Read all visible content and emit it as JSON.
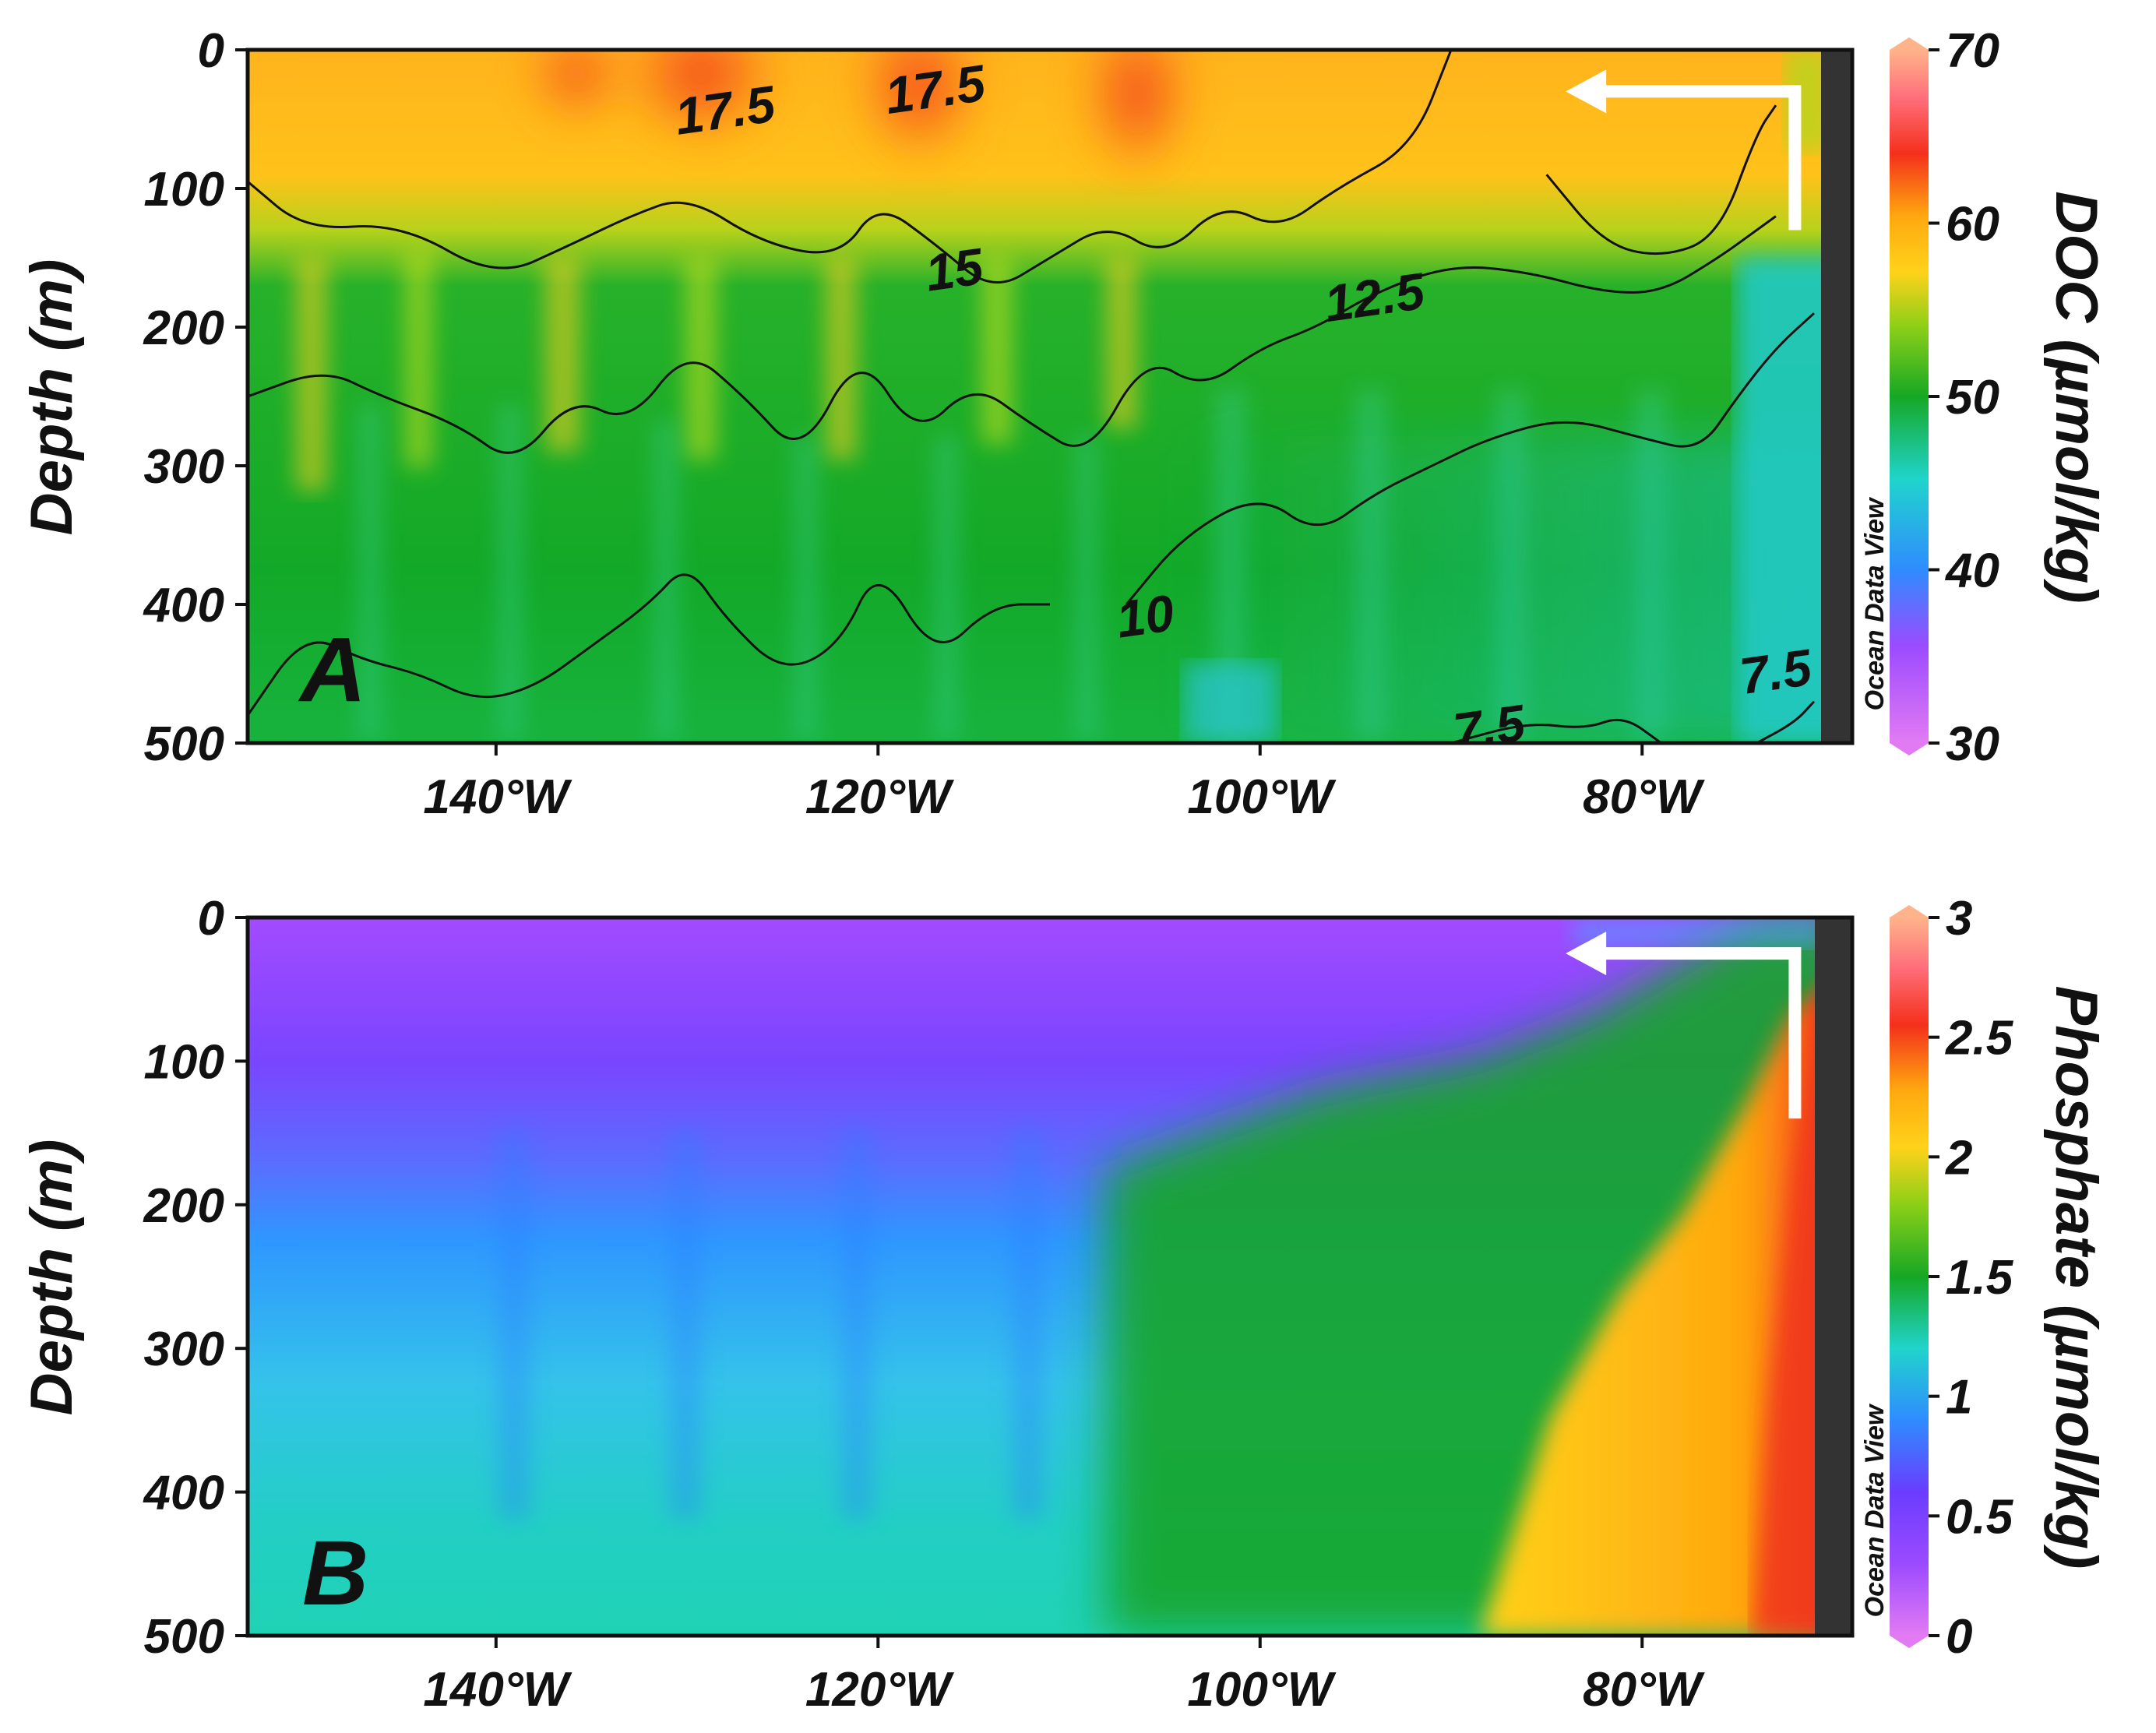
{
  "figure": {
    "source_tag": "Ocean Data View"
  },
  "chart_data": [
    {
      "type": "heatmap",
      "panel_label": "A",
      "variable": "DOC",
      "colorbar_label": "DOC (µmol/kg)",
      "ylabel": "Depth (m)",
      "ylim": [
        0,
        500
      ],
      "y_ticks": [
        "0",
        "100",
        "200",
        "300",
        "400",
        "500"
      ],
      "xlim_lon_w": [
        153,
        69
      ],
      "x_ticks": [
        {
          "lon_w": 140,
          "label": "140°W"
        },
        {
          "lon_w": 120,
          "label": "120°W"
        },
        {
          "lon_w": 100,
          "label": "100°W"
        },
        {
          "lon_w": 80,
          "label": "80°W"
        }
      ],
      "color_range": [
        30,
        70
      ],
      "colorbar_ticks": [
        "30",
        "40",
        "50",
        "60",
        "70"
      ],
      "contour_variable_levels": [
        "7.5",
        "10",
        "12.5",
        "15",
        "17.5"
      ],
      "contour_labels": [
        {
          "text": "17.5",
          "lon_w": 128,
          "depth": 45
        },
        {
          "text": "17.5",
          "lon_w": 117,
          "depth": 30
        },
        {
          "text": "15",
          "lon_w": 116,
          "depth": 160
        },
        {
          "text": "12.5",
          "lon_w": 94,
          "depth": 180
        },
        {
          "text": "10",
          "lon_w": 106,
          "depth": 410
        },
        {
          "text": "7.5",
          "lon_w": 88,
          "depth": 490
        },
        {
          "text": "7.5",
          "lon_w": 73,
          "depth": 450
        }
      ],
      "contours": [
        {
          "level": "15",
          "points": [
            [
              153,
              95
            ],
            [
              150,
              130
            ],
            [
              145,
              125
            ],
            [
              140,
              165
            ],
            [
              136,
              140
            ],
            [
              133,
              120
            ],
            [
              130,
              105
            ],
            [
              126,
              140
            ],
            [
              122,
              150
            ],
            [
              120,
              110
            ],
            [
              117,
              140
            ],
            [
              114,
              175
            ],
            [
              111,
              150
            ],
            [
              108,
              125
            ],
            [
              105,
              150
            ],
            [
              102,
              110
            ],
            [
              99,
              130
            ],
            [
              96,
              100
            ],
            [
              92,
              70
            ],
            [
              90,
              0
            ]
          ]
        },
        {
          "level": "15",
          "points": [
            [
              85,
              90
            ],
            [
              82,
              140
            ],
            [
              79,
              150
            ],
            [
              76,
              135
            ],
            [
              74,
              60
            ],
            [
              73,
              40
            ]
          ]
        },
        {
          "level": "12.5",
          "points": [
            [
              153,
              250
            ],
            [
              149,
              230
            ],
            [
              146,
              250
            ],
            [
              142,
              270
            ],
            [
              139,
              300
            ],
            [
              136,
              250
            ],
            [
              133,
              270
            ],
            [
              130,
              215
            ],
            [
              127,
              250
            ],
            [
              124,
              295
            ],
            [
              121,
              215
            ],
            [
              118,
              280
            ],
            [
              115,
              240
            ],
            [
              112,
              270
            ],
            [
              109,
              295
            ],
            [
              106,
              220
            ],
            [
              103,
              245
            ],
            [
              100,
              215
            ],
            [
              97,
              200
            ],
            [
              94,
              175
            ],
            [
              90,
              155
            ],
            [
              86,
              160
            ],
            [
              82,
              175
            ],
            [
              79,
              175
            ],
            [
              76,
              150
            ],
            [
              74,
              130
            ],
            [
              73,
              120
            ]
          ]
        },
        {
          "level": "10",
          "points": [
            [
              153,
              480
            ],
            [
              150,
              420
            ],
            [
              147,
              440
            ],
            [
              144,
              450
            ],
            [
              141,
              470
            ],
            [
              138,
              460
            ],
            [
              135,
              430
            ],
            [
              132,
              400
            ],
            [
              130,
              370
            ],
            [
              128,
              410
            ],
            [
              125,
              450
            ],
            [
              122,
              430
            ],
            [
              120,
              370
            ],
            [
              117,
              440
            ],
            [
              114,
              400
            ],
            [
              111,
              400
            ]
          ]
        },
        {
          "level": "10",
          "points": [
            [
              107,
              400
            ],
            [
              104,
              350
            ],
            [
              100,
              320
            ],
            [
              97,
              350
            ],
            [
              94,
              320
            ],
            [
              91,
              300
            ],
            [
              88,
              280
            ],
            [
              84,
              265
            ],
            [
              80,
              280
            ],
            [
              77,
              290
            ],
            [
              75,
              250
            ],
            [
              73,
              215
            ],
            [
              71,
              190
            ]
          ]
        },
        {
          "level": "7.5",
          "points": [
            [
              90,
              500
            ],
            [
              86,
              485
            ],
            [
              83,
              490
            ],
            [
              81,
              480
            ],
            [
              79,
              500
            ]
          ]
        },
        {
          "level": "7.5",
          "points": [
            [
              74,
              500
            ],
            [
              72,
              485
            ],
            [
              71,
              470
            ]
          ]
        }
      ],
      "arrow": {
        "start_lon_w": 72,
        "start_depth": 130,
        "corner_depth": 30,
        "end_lon_w": 84
      },
      "ocean_data_view_tag": "Ocean Data View"
    },
    {
      "type": "heatmap",
      "panel_label": "B",
      "variable": "Phosphate",
      "colorbar_label": "Phosphate (µmol/kg)",
      "ylabel": "Depth (m)",
      "ylim": [
        0,
        500
      ],
      "y_ticks": [
        "0",
        "100",
        "200",
        "300",
        "400",
        "500"
      ],
      "xlim_lon_w": [
        153,
        69
      ],
      "x_ticks": [
        {
          "lon_w": 140,
          "label": "140°W"
        },
        {
          "lon_w": 120,
          "label": "120°W"
        },
        {
          "lon_w": 100,
          "label": "100°W"
        },
        {
          "lon_w": 80,
          "label": "80°W"
        }
      ],
      "color_range": [
        0,
        3
      ],
      "colorbar_ticks": [
        "0",
        "0.5",
        "1",
        "1.5",
        "2",
        "2.5",
        "3"
      ],
      "arrow": {
        "start_lon_w": 72,
        "start_depth": 140,
        "corner_depth": 25,
        "end_lon_w": 84
      },
      "ocean_data_view_tag": "Ocean Data View"
    }
  ]
}
